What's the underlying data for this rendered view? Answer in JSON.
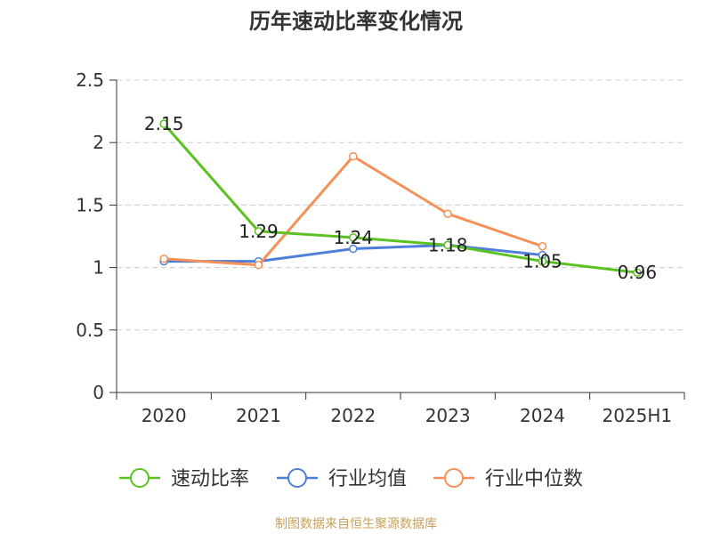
{
  "chart_data": {
    "type": "line",
    "title": "历年速动比率变化情况",
    "categories": [
      "2020",
      "2021",
      "2022",
      "2023",
      "2024",
      "2025H1"
    ],
    "ylim": [
      0,
      2.5
    ],
    "yticks": [
      "0",
      "0.5",
      "1",
      "1.5",
      "2",
      "2.5"
    ],
    "grid": true,
    "legend_position": "bottom",
    "series": [
      {
        "name": "速动比率",
        "color": "#5cc222",
        "show_labels": true,
        "values": [
          2.15,
          1.29,
          1.24,
          1.18,
          1.05,
          0.96
        ],
        "labels": [
          "2.15",
          "1.29",
          "1.24",
          "1.18",
          "1.05",
          "0.96"
        ]
      },
      {
        "name": "行业均值",
        "color": "#4e7fd8",
        "show_labels": false,
        "values": [
          1.05,
          1.05,
          1.15,
          1.18,
          1.1,
          null
        ]
      },
      {
        "name": "行业中位数",
        "color": "#f59059",
        "show_labels": false,
        "values": [
          1.07,
          1.02,
          1.89,
          1.43,
          1.17,
          null
        ]
      }
    ]
  },
  "footer": {
    "source": "制图数据来自恒生聚源数据库"
  }
}
